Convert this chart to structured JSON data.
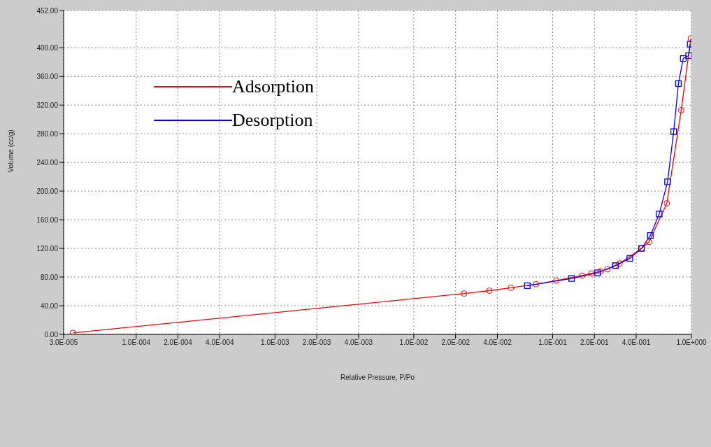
{
  "chart_data": {
    "type": "line",
    "xlabel": "Relative Pressure, P/Po",
    "ylabel": "Volume (cc/g)",
    "log": "x",
    "grid": true,
    "legend": "top left",
    "xlim": [
      3e-05,
      1.0
    ],
    "xticks": [
      {
        "value": 3e-05,
        "label": "3.0E-005"
      },
      {
        "value": 0.0001,
        "label": "1.0E-004"
      },
      {
        "value": 0.0002,
        "label": "2.0E-004"
      },
      {
        "value": 0.0004,
        "label": "4.0E-004"
      },
      {
        "value": 0.001,
        "label": "1.0E-003"
      },
      {
        "value": 0.002,
        "label": "2.0E-003"
      },
      {
        "value": 0.004,
        "label": "4.0E-003"
      },
      {
        "value": 0.01,
        "label": "1.0E-002"
      },
      {
        "value": 0.02,
        "label": "2.0E-002"
      },
      {
        "value": 0.04,
        "label": "4.0E-002"
      },
      {
        "value": 0.1,
        "label": "1.0E-001"
      },
      {
        "value": 0.2,
        "label": "2.0E-001"
      },
      {
        "value": 0.4,
        "label": "4.0E-001"
      },
      {
        "value": 1.0,
        "label": "1.0E+000"
      }
    ],
    "ylim": [
      0,
      452
    ],
    "yticks": [
      {
        "value": 0,
        "label": "0.00"
      },
      {
        "value": 40,
        "label": "40.00"
      },
      {
        "value": 80,
        "label": "80.00"
      },
      {
        "value": 120,
        "label": "120.00"
      },
      {
        "value": 160,
        "label": "160.00"
      },
      {
        "value": 200,
        "label": "200.00"
      },
      {
        "value": 240,
        "label": "240.00"
      },
      {
        "value": 280,
        "label": "280.00"
      },
      {
        "value": 320,
        "label": "320.00"
      },
      {
        "value": 360,
        "label": "360.00"
      },
      {
        "value": 400,
        "label": "400.00"
      },
      {
        "value": 452,
        "label": "452.00"
      }
    ],
    "series": [
      {
        "name": "Adsorption",
        "color": "#ff0000",
        "marker": "circle",
        "x": [
          3.5e-05,
          0.023,
          0.035,
          0.05,
          0.076,
          0.106,
          0.163,
          0.19,
          0.221,
          0.248,
          0.281,
          0.304,
          0.437,
          0.495,
          0.665,
          0.844,
          0.99
        ],
        "values": [
          2,
          57,
          61,
          65,
          70,
          75,
          82,
          85,
          88,
          91,
          96,
          99,
          120,
          129,
          183,
          313,
          413
        ]
      },
      {
        "name": "Desorption",
        "color": "#0000ff",
        "marker": "square",
        "x": [
          0.98,
          0.955,
          0.873,
          0.806,
          0.745,
          0.673,
          0.586,
          0.506,
          0.437,
          0.36,
          0.284,
          0.211,
          0.137,
          0.0657
        ],
        "values": [
          405,
          389,
          385,
          350,
          283,
          213,
          168,
          138,
          120,
          106,
          96,
          86,
          78,
          68
        ]
      }
    ]
  }
}
